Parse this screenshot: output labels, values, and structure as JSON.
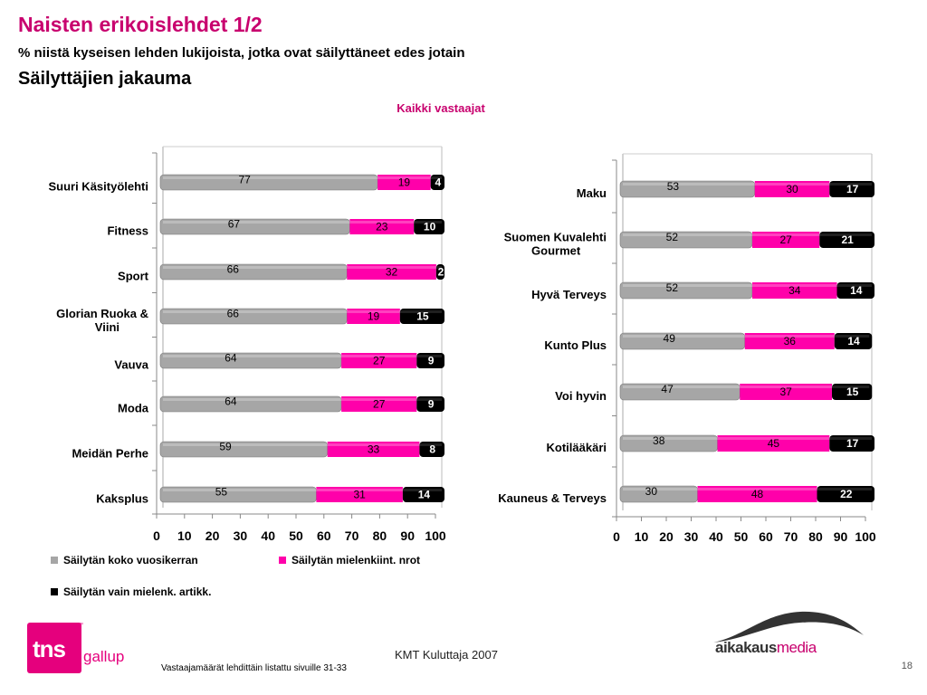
{
  "title": "Naisten erikoislehdet 1/2",
  "subtitle": "% niistä kyseisen lehden lukijoista, jotka ovat säilyttäneet edes jotain",
  "subtitle2": "Säilyttäjien jakauma",
  "respondents_label": "Kaikki vastaajat",
  "colors": {
    "series1": "#a6a6a6",
    "series2": "#ff00aa",
    "series3": "#000000",
    "title": "#c8006e"
  },
  "legend": [
    "Säilytän koko vuosikerran",
    "Säilytän mielenkiint. nrot",
    "Säilytän vain mielenk. artikk."
  ],
  "footnote": "Vastaajamäärät lehdittäin listattu sivuille 31-33",
  "source": "KMT Kuluttaja 2007",
  "page_number": "18",
  "logos": {
    "tns_main": "tns",
    "tns_sub": "gallup",
    "tns_tm": "™",
    "aikakausmedia_a": "aikakaus",
    "aikakausmedia_b": "media"
  },
  "chart_data": [
    {
      "type": "bar",
      "orientation": "horizontal",
      "stacked": true,
      "categories": [
        "Suuri Käsityölehti",
        "Fitness",
        "Sport",
        "Glorian Ruoka & Viini",
        "Vauva",
        "Moda",
        "Meidän Perhe",
        "Kaksplus"
      ],
      "series": [
        {
          "name": "Säilytän koko vuosikerran",
          "values": [
            77,
            67,
            66,
            66,
            64,
            64,
            59,
            55
          ]
        },
        {
          "name": "Säilytän mielenkiint. nrot",
          "values": [
            19,
            23,
            32,
            19,
            27,
            27,
            33,
            31
          ]
        },
        {
          "name": "Säilytän vain mielenk. artikk.",
          "values": [
            4,
            10,
            2,
            15,
            9,
            9,
            8,
            14
          ]
        }
      ],
      "xlim": [
        0,
        100
      ],
      "xticks": [
        0,
        10,
        20,
        30,
        40,
        50,
        60,
        70,
        80,
        90,
        100
      ],
      "legend_position": "bottom"
    },
    {
      "type": "bar",
      "orientation": "horizontal",
      "stacked": true,
      "categories": [
        "Maku",
        "Suomen Kuvalehti Gourmet",
        "Hyvä Terveys",
        "Kunto Plus",
        "Voi hyvin",
        "Kotilääkäri",
        "Kauneus & Terveys"
      ],
      "series": [
        {
          "name": "Säilytän koko vuosikerran",
          "values": [
            53,
            52,
            52,
            49,
            47,
            38,
            30
          ]
        },
        {
          "name": "Säilytän mielenkiint. nrot",
          "values": [
            30,
            27,
            34,
            36,
            37,
            45,
            48
          ]
        },
        {
          "name": "Säilytän vain mielenk. artikk.",
          "values": [
            17,
            21,
            14,
            14,
            15,
            17,
            22
          ]
        }
      ],
      "xlim": [
        0,
        100
      ],
      "xticks": [
        0,
        10,
        20,
        30,
        40,
        50,
        60,
        70,
        80,
        90,
        100
      ]
    }
  ]
}
